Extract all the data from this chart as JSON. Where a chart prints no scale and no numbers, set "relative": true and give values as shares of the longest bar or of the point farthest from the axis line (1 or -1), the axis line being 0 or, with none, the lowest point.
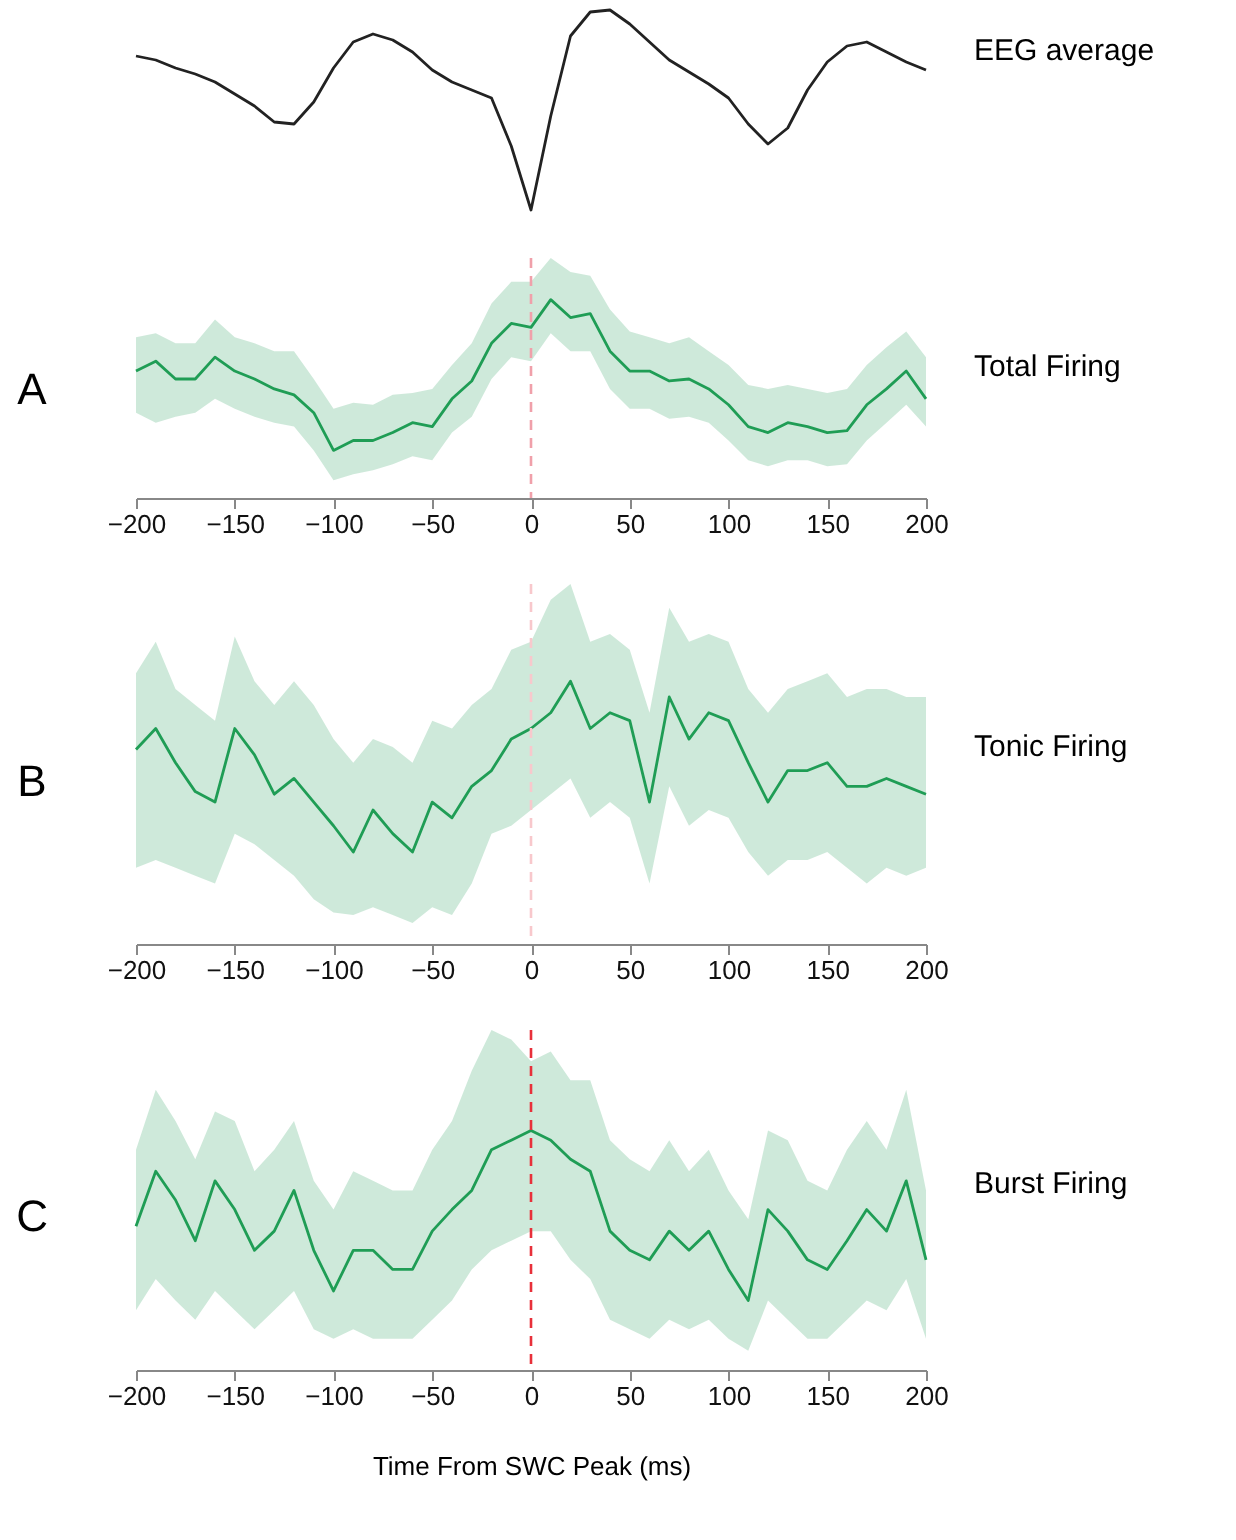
{
  "chart_data": [
    {
      "type": "line",
      "annotations": [
        "EEG average"
      ],
      "relative": true,
      "tick_labels": false,
      "xlim": [
        -200,
        200
      ],
      "x": [
        -200,
        -190,
        -180,
        -170,
        -160,
        -150,
        -140,
        -130,
        -120,
        -110,
        -100,
        -90,
        -80,
        -70,
        -60,
        -50,
        -40,
        -30,
        -20,
        -10,
        0,
        10,
        20,
        30,
        40,
        50,
        60,
        70,
        80,
        90,
        100,
        110,
        120,
        130,
        140,
        150,
        160,
        170,
        180,
        190,
        200
      ],
      "series": [
        {
          "color": "#222222",
          "values": [
            0.77,
            0.75,
            0.71,
            0.68,
            0.64,
            0.58,
            0.52,
            0.44,
            0.43,
            0.54,
            0.71,
            0.84,
            0.88,
            0.85,
            0.79,
            0.7,
            0.64,
            0.6,
            0.56,
            0.32,
            0,
            0.47,
            0.87,
            0.99,
            1,
            0.93,
            0.84,
            0.75,
            0.69,
            0.63,
            0.56,
            0.43,
            0.33,
            0.41,
            0.6,
            0.74,
            0.82,
            0.84,
            0.79,
            0.74,
            0.7
          ]
        }
      ]
    },
    {
      "type": "line",
      "annotations": [
        "A",
        "Total Firing"
      ],
      "relative": true,
      "xlim": [
        -200,
        200
      ],
      "xticks": [
        -200,
        -150,
        -100,
        -50,
        0,
        50,
        100,
        150,
        200
      ],
      "x": [
        -200,
        -190,
        -180,
        -170,
        -160,
        -150,
        -140,
        -130,
        -120,
        -110,
        -100,
        -90,
        -80,
        -70,
        -60,
        -50,
        -40,
        -30,
        -20,
        -10,
        0,
        10,
        20,
        30,
        40,
        50,
        60,
        70,
        80,
        90,
        100,
        110,
        120,
        130,
        140,
        150,
        160,
        170,
        180,
        190,
        200
      ],
      "series": [
        {
          "color": "#1f9d55",
          "values": [
            0.64,
            0.69,
            0.6,
            0.6,
            0.71,
            0.64,
            0.6,
            0.55,
            0.52,
            0.43,
            0.24,
            0.29,
            0.29,
            0.33,
            0.38,
            0.36,
            0.5,
            0.59,
            0.78,
            0.88,
            0.86,
            1,
            0.91,
            0.93,
            0.74,
            0.64,
            0.64,
            0.59,
            0.6,
            0.55,
            0.47,
            0.36,
            0.33,
            0.38,
            0.36,
            0.33,
            0.34,
            0.47,
            0.55,
            0.64,
            0.5
          ],
          "upper": [
            0.81,
            0.83,
            0.78,
            0.78,
            0.9,
            0.81,
            0.78,
            0.74,
            0.74,
            0.6,
            0.45,
            0.48,
            0.47,
            0.52,
            0.53,
            0.55,
            0.67,
            0.78,
            0.98,
            1.09,
            1.09,
            1.21,
            1.14,
            1.12,
            0.95,
            0.84,
            0.81,
            0.78,
            0.81,
            0.74,
            0.67,
            0.57,
            0.55,
            0.57,
            0.55,
            0.53,
            0.55,
            0.67,
            0.76,
            0.84,
            0.71
          ],
          "lower": [
            0.43,
            0.38,
            0.41,
            0.43,
            0.5,
            0.45,
            0.41,
            0.38,
            0.36,
            0.24,
            0.09,
            0.12,
            0.14,
            0.17,
            0.21,
            0.19,
            0.33,
            0.41,
            0.6,
            0.71,
            0.69,
            0.83,
            0.74,
            0.74,
            0.55,
            0.45,
            0.45,
            0.4,
            0.41,
            0.38,
            0.29,
            0.19,
            0.16,
            0.19,
            0.19,
            0.16,
            0.17,
            0.29,
            0.38,
            0.47,
            0.36
          ]
        }
      ],
      "ref_lines": [
        {
          "axis": "x",
          "value": 0,
          "color": "#f0a0aa",
          "line_style": "dashed"
        }
      ]
    },
    {
      "type": "line",
      "annotations": [
        "B",
        "Tonic Firing"
      ],
      "relative": true,
      "xlim": [
        -200,
        200
      ],
      "xticks": [
        -200,
        -150,
        -100,
        -50,
        0,
        50,
        100,
        150,
        200
      ],
      "x": [
        -200,
        -190,
        -180,
        -170,
        -160,
        -150,
        -140,
        -130,
        -120,
        -110,
        -100,
        -90,
        -80,
        -70,
        -60,
        -50,
        -40,
        -30,
        -20,
        -10,
        0,
        10,
        20,
        30,
        40,
        50,
        60,
        70,
        80,
        90,
        100,
        110,
        120,
        130,
        140,
        150,
        160,
        170,
        180,
        190,
        200
      ],
      "series": [
        {
          "color": "#1f9d55",
          "values": [
            0.74,
            0.82,
            0.69,
            0.58,
            0.54,
            0.82,
            0.72,
            0.57,
            0.63,
            0.54,
            0.45,
            0.35,
            0.51,
            0.42,
            0.35,
            0.54,
            0.48,
            0.6,
            0.66,
            0.78,
            0.82,
            0.88,
            1,
            0.82,
            0.88,
            0.85,
            0.54,
            0.94,
            0.78,
            0.88,
            0.85,
            0.69,
            0.54,
            0.66,
            0.66,
            0.69,
            0.6,
            0.6,
            0.63,
            0.6,
            0.57
          ],
          "upper": [
            1.03,
            1.15,
            0.97,
            0.91,
            0.85,
            1.17,
            1,
            0.91,
            1,
            0.91,
            0.78,
            0.69,
            0.78,
            0.75,
            0.69,
            0.85,
            0.82,
            0.91,
            0.97,
            1.12,
            1.15,
            1.31,
            1.37,
            1.15,
            1.18,
            1.12,
            0.88,
            1.28,
            1.15,
            1.18,
            1.15,
            0.97,
            0.88,
            0.97,
            1,
            1.03,
            0.94,
            0.97,
            0.97,
            0.94,
            0.94
          ],
          "lower": [
            0.29,
            0.32,
            0.29,
            0.26,
            0.23,
            0.42,
            0.38,
            0.32,
            0.26,
            0.17,
            0.12,
            0.11,
            0.14,
            0.11,
            0.08,
            0.14,
            0.11,
            0.23,
            0.42,
            0.45,
            0.51,
            0.57,
            0.63,
            0.48,
            0.54,
            0.48,
            0.23,
            0.6,
            0.45,
            0.51,
            0.48,
            0.35,
            0.26,
            0.32,
            0.32,
            0.35,
            0.29,
            0.23,
            0.29,
            0.26,
            0.29
          ]
        }
      ],
      "ref_lines": [
        {
          "axis": "x",
          "value": 0,
          "color": "#f8c8cc",
          "line_style": "dashed"
        }
      ]
    },
    {
      "type": "line",
      "annotations": [
        "C",
        "Burst Firing"
      ],
      "xlabel": "Time From SWC Peak (ms)",
      "relative": true,
      "xlim": [
        -200,
        200
      ],
      "xticks": [
        -200,
        -150,
        -100,
        -50,
        0,
        50,
        100,
        150,
        200
      ],
      "x": [
        -200,
        -190,
        -180,
        -170,
        -160,
        -150,
        -140,
        -130,
        -120,
        -110,
        -100,
        -90,
        -80,
        -70,
        -60,
        -50,
        -40,
        -30,
        -20,
        -10,
        0,
        10,
        20,
        30,
        40,
        50,
        60,
        70,
        80,
        90,
        100,
        110,
        120,
        130,
        140,
        150,
        160,
        170,
        180,
        190,
        200
      ],
      "series": [
        {
          "color": "#1f9d55",
          "values": [
            0.6,
            0.83,
            0.71,
            0.54,
            0.79,
            0.67,
            0.5,
            0.58,
            0.75,
            0.5,
            0.33,
            0.5,
            0.5,
            0.42,
            0.42,
            0.58,
            0.67,
            0.75,
            0.92,
            0.96,
            1,
            0.96,
            0.88,
            0.83,
            0.58,
            0.5,
            0.46,
            0.58,
            0.5,
            0.58,
            0.42,
            0.29,
            0.67,
            0.58,
            0.46,
            0.42,
            0.54,
            0.67,
            0.58,
            0.79,
            0.46
          ],
          "upper": [
            0.92,
            1.17,
            1.04,
            0.88,
            1.08,
            1.04,
            0.83,
            0.92,
            1.04,
            0.79,
            0.67,
            0.83,
            0.79,
            0.75,
            0.75,
            0.92,
            1.04,
            1.25,
            1.42,
            1.38,
            1.29,
            1.33,
            1.21,
            1.21,
            0.96,
            0.88,
            0.83,
            0.96,
            0.83,
            0.92,
            0.75,
            0.63,
            1,
            0.96,
            0.79,
            0.75,
            0.92,
            1.04,
            0.92,
            1.17,
            0.75
          ],
          "lower": [
            0.25,
            0.38,
            0.29,
            0.21,
            0.33,
            0.25,
            0.17,
            0.25,
            0.33,
            0.17,
            0.13,
            0.17,
            0.13,
            0.13,
            0.13,
            0.21,
            0.29,
            0.42,
            0.5,
            0.54,
            0.58,
            0.58,
            0.46,
            0.38,
            0.21,
            0.17,
            0.13,
            0.21,
            0.17,
            0.21,
            0.13,
            0.08,
            0.29,
            0.21,
            0.13,
            0.13,
            0.21,
            0.29,
            0.25,
            0.38,
            0.13
          ]
        }
      ],
      "ref_lines": [
        {
          "axis": "x",
          "value": 0,
          "color": "#e8303a",
          "line_style": "dashed"
        }
      ]
    }
  ]
}
